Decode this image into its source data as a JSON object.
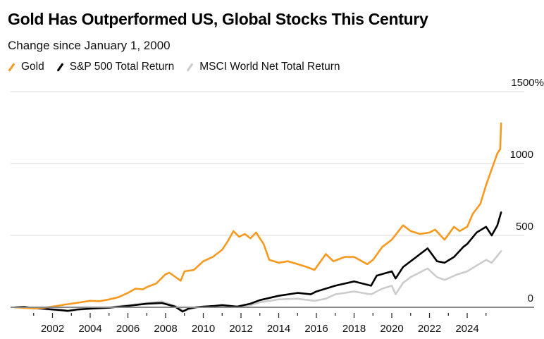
{
  "header": {
    "title": "Gold Has Outperformed US, Global Stocks This Century",
    "subtitle": "Change since January 1, 2000"
  },
  "legend": [
    {
      "label": "Gold",
      "color": "#f7991f"
    },
    {
      "label": "S&P 500 Total Return",
      "color": "#000000"
    },
    {
      "label": "MSCI World Net Total Return",
      "color": "#cccccc"
    }
  ],
  "chart_data": {
    "type": "line",
    "title": "Gold Has Outperformed US, Global Stocks This Century",
    "subtitle": "Change since January 1, 2000",
    "xlabel": "",
    "ylabel": "",
    "xlim": [
      2000,
      2026
    ],
    "ylim": [
      0,
      1500
    ],
    "y_ticks": [
      {
        "value": 1500,
        "label": "1500%"
      },
      {
        "value": 1000,
        "label": "1000"
      },
      {
        "value": 500,
        "label": "500"
      },
      {
        "value": 0,
        "label": "0"
      }
    ],
    "x_ticks_labeled": [
      "2002",
      "2004",
      "2006",
      "2008",
      "2010",
      "2012",
      "2014",
      "2016",
      "2018",
      "2020",
      "2022",
      "2024"
    ],
    "x_ticks_minor": [
      2001,
      2003,
      2005,
      2007,
      2009,
      2011,
      2013,
      2015,
      2017,
      2019,
      2021,
      2023,
      2025
    ],
    "grid": true,
    "legend_position": "top-left",
    "series": [
      {
        "name": "Gold",
        "color": "#f7991f",
        "x": [
          2000,
          2000.5,
          2001,
          2001.5,
          2002,
          2002.5,
          2003,
          2003.5,
          2004,
          2004.5,
          2005,
          2005.5,
          2006,
          2006.4,
          2006.8,
          2007,
          2007.5,
          2008,
          2008.2,
          2008.8,
          2009,
          2009.5,
          2010,
          2010.5,
          2011,
          2011.3,
          2011.6,
          2011.9,
          2012.2,
          2012.5,
          2012.8,
          2013.2,
          2013.5,
          2014,
          2014.5,
          2015,
          2015.5,
          2015.9,
          2016.5,
          2016.9,
          2017.5,
          2018,
          2018.7,
          2019,
          2019.5,
          2020,
          2020.6,
          2021,
          2021.5,
          2022,
          2022.3,
          2022.8,
          2023.3,
          2023.6,
          2024,
          2024.3,
          2024.7,
          2025,
          2025.3,
          2025.6,
          2025.75,
          2025.8
        ],
        "values": [
          0,
          -5,
          -8,
          -4,
          5,
          15,
          25,
          35,
          45,
          42,
          55,
          70,
          100,
          130,
          125,
          140,
          165,
          230,
          240,
          185,
          250,
          260,
          320,
          350,
          400,
          460,
          530,
          490,
          510,
          480,
          520,
          440,
          330,
          310,
          320,
          300,
          280,
          260,
          370,
          320,
          350,
          350,
          300,
          330,
          420,
          470,
          570,
          530,
          510,
          520,
          540,
          470,
          560,
          530,
          560,
          650,
          720,
          850,
          960,
          1070,
          1100,
          1280
        ]
      },
      {
        "name": "S&P 500 Total Return",
        "color": "#000000",
        "x": [
          2000,
          2000.5,
          2001,
          2001.5,
          2002,
          2002.5,
          2002.8,
          2003.3,
          2004,
          2005,
          2006,
          2007,
          2007.8,
          2008.5,
          2008.9,
          2009.2,
          2009.6,
          2010,
          2010.6,
          2011,
          2011.8,
          2012.5,
          2013,
          2014,
          2015,
          2015.7,
          2016,
          2016.5,
          2017,
          2018,
          2018.9,
          2019.2,
          2020,
          2020.2,
          2020.6,
          2021,
          2021.9,
          2022.4,
          2022.8,
          2023.3,
          2023.8,
          2024,
          2024.5,
          2025,
          2025.3,
          2025.6,
          2025.8
        ],
        "values": [
          0,
          3,
          -5,
          -10,
          -15,
          -20,
          -25,
          -15,
          -10,
          -3,
          10,
          25,
          30,
          5,
          -30,
          -10,
          0,
          5,
          10,
          15,
          5,
          25,
          50,
          80,
          100,
          90,
          110,
          130,
          150,
          180,
          150,
          220,
          250,
          200,
          280,
          320,
          410,
          320,
          310,
          350,
          420,
          440,
          520,
          560,
          500,
          570,
          660
        ]
      },
      {
        "name": "MSCI World Net Total Return",
        "color": "#cccccc",
        "x": [
          2000,
          2000.5,
          2001,
          2002,
          2002.8,
          2003.3,
          2004,
          2005,
          2006,
          2007,
          2007.8,
          2008.5,
          2009,
          2009.5,
          2010,
          2011,
          2011.8,
          2012.5,
          2013,
          2014,
          2015,
          2015.9,
          2016.5,
          2017,
          2018,
          2018.9,
          2019.5,
          2020,
          2020.2,
          2020.6,
          2021,
          2021.9,
          2022.4,
          2022.8,
          2023.5,
          2024,
          2024.5,
          2025,
          2025.3,
          2025.8
        ],
        "values": [
          0,
          0,
          -8,
          -18,
          -28,
          -20,
          -10,
          0,
          15,
          30,
          40,
          10,
          -25,
          -5,
          5,
          10,
          0,
          15,
          35,
          55,
          60,
          45,
          60,
          90,
          110,
          90,
          130,
          150,
          90,
          170,
          210,
          270,
          210,
          190,
          230,
          250,
          290,
          330,
          310,
          390
        ]
      }
    ]
  }
}
